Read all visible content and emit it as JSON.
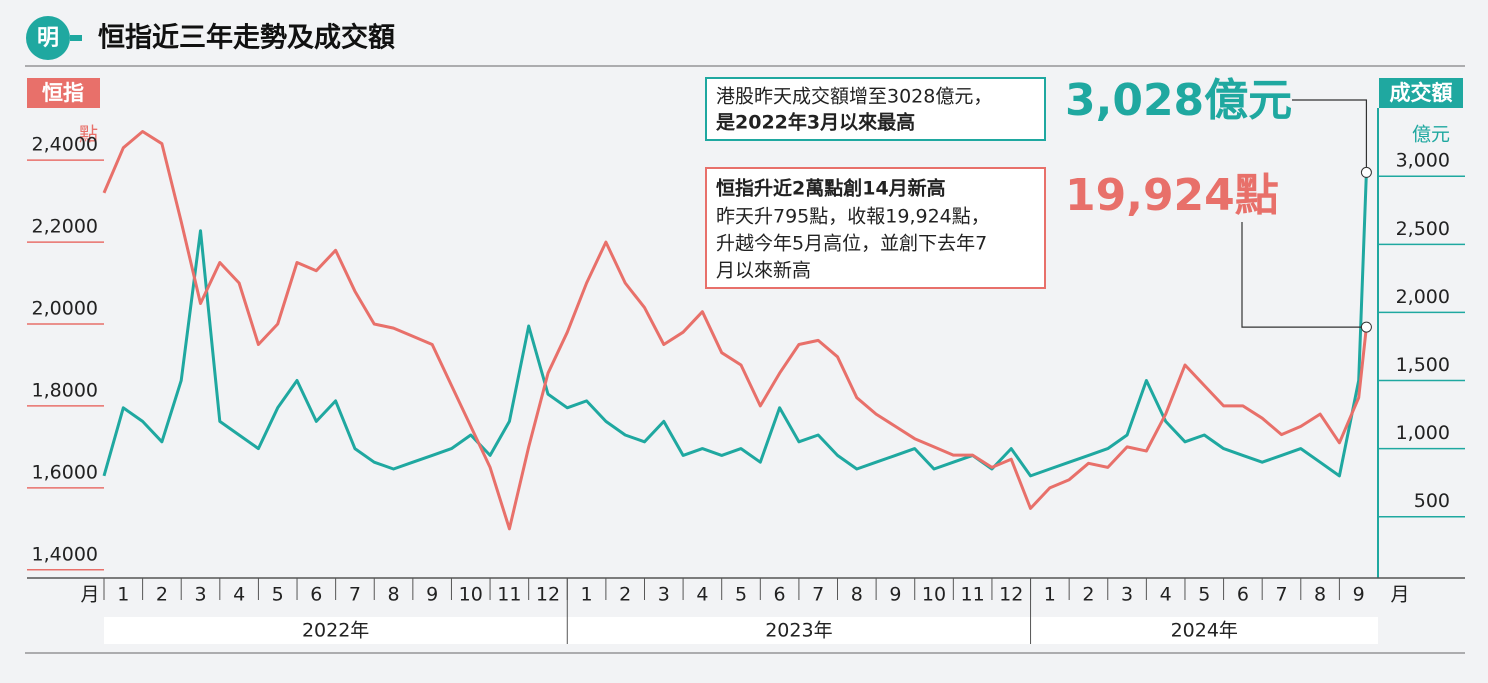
{
  "chart_data": {
    "type": "line",
    "logo": "明",
    "title": "恒指近三年走勢及成交額",
    "y_label": "恒指",
    "y_unit": "點",
    "y2_label": "成交額",
    "y2_unit": "億元",
    "x_unit": "月",
    "years": [
      "2022年",
      "2023年",
      "2024年"
    ],
    "xlim": [
      0,
      33
    ],
    "xticks": [
      {
        "value": 0.5,
        "label": "1"
      },
      {
        "value": 1.5,
        "label": "2"
      },
      {
        "value": 2.5,
        "label": "3"
      },
      {
        "value": 3.5,
        "label": "4"
      },
      {
        "value": 4.5,
        "label": "5"
      },
      {
        "value": 5.5,
        "label": "6"
      },
      {
        "value": 6.5,
        "label": "7"
      },
      {
        "value": 7.5,
        "label": "8"
      },
      {
        "value": 8.5,
        "label": "9"
      },
      {
        "value": 9.5,
        "label": "10"
      },
      {
        "value": 10.5,
        "label": "11"
      },
      {
        "value": 11.5,
        "label": "12"
      },
      {
        "value": 12.5,
        "label": "1"
      },
      {
        "value": 13.5,
        "label": "2"
      },
      {
        "value": 14.5,
        "label": "3"
      },
      {
        "value": 15.5,
        "label": "4"
      },
      {
        "value": 16.5,
        "label": "5"
      },
      {
        "value": 17.5,
        "label": "6"
      },
      {
        "value": 18.5,
        "label": "7"
      },
      {
        "value": 19.5,
        "label": "8"
      },
      {
        "value": 20.5,
        "label": "9"
      },
      {
        "value": 21.5,
        "label": "10"
      },
      {
        "value": 22.5,
        "label": "11"
      },
      {
        "value": 23.5,
        "label": "12"
      },
      {
        "value": 24.5,
        "label": "1"
      },
      {
        "value": 25.5,
        "label": "2"
      },
      {
        "value": 26.5,
        "label": "3"
      },
      {
        "value": 27.5,
        "label": "4"
      },
      {
        "value": 28.5,
        "label": "5"
      },
      {
        "value": 29.5,
        "label": "6"
      },
      {
        "value": 30.5,
        "label": "7"
      },
      {
        "value": 31.5,
        "label": "8"
      },
      {
        "value": 32.5,
        "label": "9"
      }
    ],
    "ylim": [
      13800,
      26200
    ],
    "yticks": [
      {
        "value": 14000,
        "label": "1,4000"
      },
      {
        "value": 16000,
        "label": "1,6000"
      },
      {
        "value": 18000,
        "label": "1,8000"
      },
      {
        "value": 20000,
        "label": "2,0000"
      },
      {
        "value": 22000,
        "label": "2,2000"
      },
      {
        "value": 24000,
        "label": "2,4000"
      }
    ],
    "y2lim": [
      50,
      3780
    ],
    "y2ticks": [
      500,
      {
        "value": 1000,
        "label": "1,000"
      },
      {
        "value": 1500,
        "label": "1,500"
      },
      {
        "value": 2000,
        "label": "2,000"
      },
      {
        "value": 2500,
        "label": "2,500"
      },
      {
        "value": 3000,
        "label": "3,000"
      }
    ],
    "x": [
      0,
      0.5,
      1,
      1.5,
      2,
      2.5,
      3,
      3.5,
      4,
      4.5,
      5,
      5.5,
      6,
      6.5,
      7,
      7.5,
      8,
      8.5,
      9,
      9.5,
      10,
      10.5,
      11,
      11.5,
      12,
      12.5,
      13,
      13.5,
      14,
      14.5,
      15,
      15.5,
      16,
      16.5,
      17,
      17.5,
      18,
      18.5,
      19,
      19.5,
      20,
      20.5,
      21,
      21.5,
      22,
      22.5,
      23,
      23.5,
      24,
      24.5,
      25,
      25.5,
      26,
      26.5,
      27,
      27.5,
      28,
      28.5,
      29,
      29.5,
      30,
      30.5,
      31,
      31.5,
      32,
      32.5,
      32.7
    ],
    "series": [
      {
        "name": "恒指",
        "color": "#e8706a",
        "values": [
          23200,
          24300,
          24700,
          24400,
          22500,
          20500,
          21500,
          21000,
          19500,
          20000,
          21500,
          21300,
          21800,
          20800,
          20000,
          19900,
          19700,
          19500,
          18500,
          17500,
          16500,
          15000,
          17000,
          18800,
          19800,
          21000,
          22000,
          21000,
          20400,
          19500,
          19800,
          20300,
          19300,
          19000,
          18000,
          18800,
          19500,
          19600,
          19200,
          18200,
          17800,
          17500,
          17200,
          17000,
          16800,
          16800,
          16500,
          16700,
          15500,
          16000,
          16200,
          16600,
          16500,
          17000,
          16900,
          17800,
          19000,
          18500,
          18000,
          18000,
          17700,
          17300,
          17500,
          17800,
          17100,
          18200,
          19924
        ]
      },
      {
        "name": "成交額",
        "color": "#1fa8a0",
        "axis": "y2",
        "values": [
          800,
          1300,
          1200,
          1050,
          1500,
          2600,
          1200,
          1100,
          1000,
          1300,
          1500,
          1200,
          1350,
          1000,
          900,
          850,
          900,
          950,
          1000,
          1100,
          950,
          1200,
          1900,
          1400,
          1300,
          1350,
          1200,
          1100,
          1050,
          1200,
          950,
          1000,
          950,
          1000,
          900,
          1300,
          1050,
          1100,
          950,
          850,
          900,
          950,
          1000,
          850,
          900,
          950,
          850,
          1000,
          800,
          850,
          900,
          950,
          1000,
          1100,
          1500,
          1200,
          1050,
          1100,
          1000,
          950,
          900,
          950,
          1000,
          900,
          800,
          1500,
          3028
        ]
      }
    ],
    "annotations": {
      "turnover_box": [
        "港股昨天成交額增至3028億元，",
        "是2022年3月以來最高"
      ],
      "turnover_callout": "3,028億元",
      "index_box": [
        "恒指升近2萬點創14月新高",
        "昨天升795點，收報19,924點，",
        "升越今年5月高位，並創下去年7",
        "月以來新高"
      ],
      "index_callout": "19,924點"
    }
  }
}
